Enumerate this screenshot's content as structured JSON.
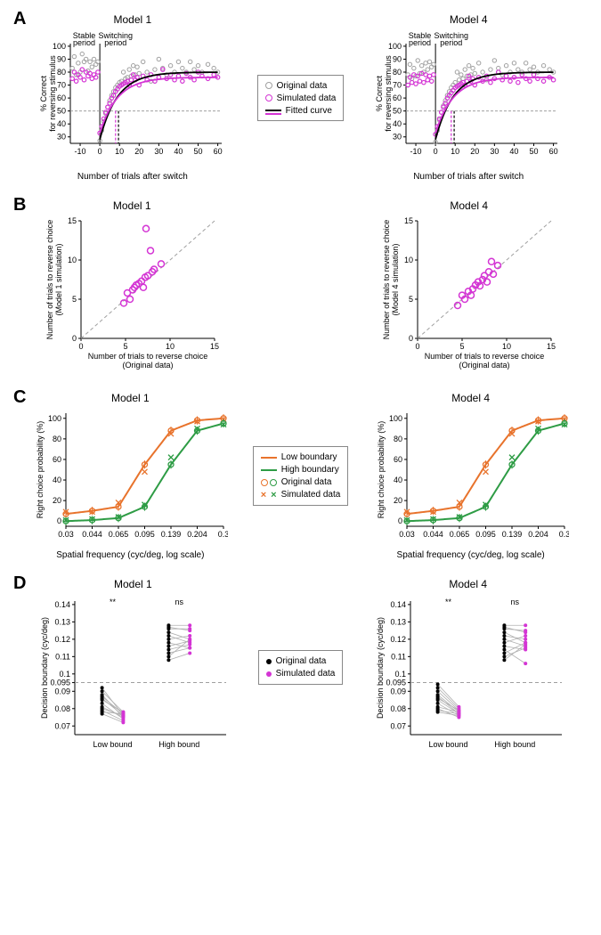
{
  "colors": {
    "magenta": "#d434d4",
    "black": "#000000",
    "gray": "#a0a0a0",
    "dash": "#a0a0a0",
    "orange": "#e8732c",
    "green": "#2e9c45"
  },
  "labels": {
    "model1": "Model 1",
    "model4": "Model 4"
  },
  "panelA": {
    "title1": "Model 1",
    "title4": "Model 4",
    "ylabel": "% Correct\nfor reversing stimulus",
    "xlabel": "Number of trials after switch",
    "stable": "Stable\nperiod",
    "switching": "Switching\nperiod",
    "legend": {
      "orig": "Original data",
      "sim": "Simulated data",
      "fit": "Fitted curve"
    },
    "xticks": [
      -10,
      0,
      10,
      20,
      30,
      40,
      50,
      60
    ],
    "yticks": [
      30,
      40,
      50,
      60,
      70,
      80,
      90,
      100
    ],
    "xlim": [
      -15,
      62
    ],
    "ylim": [
      25,
      102
    ],
    "hline": 50,
    "trans": 8,
    "m1": {
      "orig": [
        [
          -14,
          83
        ],
        [
          -13,
          92
        ],
        [
          -12,
          78
        ],
        [
          -11,
          87
        ],
        [
          -10,
          80
        ],
        [
          -9,
          94
        ],
        [
          -8,
          88
        ],
        [
          -7,
          90
        ],
        [
          -6,
          81
        ],
        [
          -5,
          88
        ],
        [
          -4,
          84
        ],
        [
          -3,
          90
        ],
        [
          -2,
          86
        ],
        [
          -1,
          88
        ],
        [
          0,
          27
        ],
        [
          1,
          35
        ],
        [
          2,
          42
        ],
        [
          3,
          48
        ],
        [
          4,
          53
        ],
        [
          5,
          58
        ],
        [
          6,
          62
        ],
        [
          7,
          65
        ],
        [
          8,
          68
        ],
        [
          9,
          70
        ],
        [
          10,
          72
        ],
        [
          11,
          73
        ],
        [
          12,
          80
        ],
        [
          13,
          75
        ],
        [
          14,
          76
        ],
        [
          15,
          82
        ],
        [
          16,
          77
        ],
        [
          17,
          85
        ],
        [
          18,
          78
        ],
        [
          19,
          84
        ],
        [
          20,
          79
        ],
        [
          22,
          88
        ],
        [
          24,
          80
        ],
        [
          26,
          73
        ],
        [
          28,
          82
        ],
        [
          30,
          90
        ],
        [
          32,
          83
        ],
        [
          34,
          78
        ],
        [
          36,
          85
        ],
        [
          38,
          80
        ],
        [
          40,
          88
        ],
        [
          42,
          83
        ],
        [
          44,
          80
        ],
        [
          46,
          88
        ],
        [
          48,
          82
        ],
        [
          50,
          85
        ],
        [
          52,
          80
        ],
        [
          55,
          86
        ],
        [
          58,
          83
        ],
        [
          60,
          80
        ]
      ],
      "sim": [
        [
          -14,
          75
        ],
        [
          -13,
          80
        ],
        [
          -12,
          73
        ],
        [
          -11,
          78
        ],
        [
          -10,
          76
        ],
        [
          -9,
          82
        ],
        [
          -8,
          74
        ],
        [
          -7,
          80
        ],
        [
          -6,
          77
        ],
        [
          -5,
          79
        ],
        [
          -4,
          75
        ],
        [
          -3,
          78
        ],
        [
          -2,
          76
        ],
        [
          -1,
          80
        ],
        [
          0,
          33
        ],
        [
          1,
          38
        ],
        [
          2,
          44
        ],
        [
          3,
          49
        ],
        [
          4,
          53
        ],
        [
          5,
          56
        ],
        [
          6,
          60
        ],
        [
          7,
          62
        ],
        [
          8,
          65
        ],
        [
          9,
          67
        ],
        [
          10,
          69
        ],
        [
          11,
          70
        ],
        [
          12,
          71
        ],
        [
          13,
          72
        ],
        [
          14,
          73
        ],
        [
          15,
          70
        ],
        [
          16,
          74
        ],
        [
          17,
          78
        ],
        [
          18,
          74
        ],
        [
          19,
          76
        ],
        [
          20,
          70
        ],
        [
          22,
          77
        ],
        [
          24,
          74
        ],
        [
          26,
          78
        ],
        [
          28,
          73
        ],
        [
          30,
          76
        ],
        [
          32,
          82
        ],
        [
          34,
          75
        ],
        [
          36,
          78
        ],
        [
          38,
          74
        ],
        [
          40,
          77
        ],
        [
          42,
          73
        ],
        [
          44,
          79
        ],
        [
          46,
          76
        ],
        [
          48,
          74
        ],
        [
          50,
          80
        ],
        [
          52,
          77
        ],
        [
          55,
          75
        ],
        [
          58,
          78
        ],
        [
          60,
          76
        ]
      ]
    },
    "m4": {
      "orig": [
        [
          -14,
          78
        ],
        [
          -13,
          86
        ],
        [
          -12,
          75
        ],
        [
          -11,
          83
        ],
        [
          -10,
          77
        ],
        [
          -9,
          89
        ],
        [
          -8,
          79
        ],
        [
          -7,
          85
        ],
        [
          -6,
          80
        ],
        [
          -5,
          87
        ],
        [
          -4,
          82
        ],
        [
          -3,
          88
        ],
        [
          -2,
          84
        ],
        [
          -1,
          86
        ],
        [
          0,
          26
        ],
        [
          1,
          35
        ],
        [
          2,
          43
        ],
        [
          3,
          49
        ],
        [
          4,
          54
        ],
        [
          5,
          58
        ],
        [
          6,
          62
        ],
        [
          7,
          65
        ],
        [
          8,
          68
        ],
        [
          9,
          70
        ],
        [
          10,
          72
        ],
        [
          11,
          80
        ],
        [
          12,
          74
        ],
        [
          13,
          78
        ],
        [
          14,
          75
        ],
        [
          15,
          82
        ],
        [
          16,
          77
        ],
        [
          17,
          85
        ],
        [
          18,
          78
        ],
        [
          19,
          83
        ],
        [
          20,
          79
        ],
        [
          22,
          87
        ],
        [
          24,
          80
        ],
        [
          26,
          74
        ],
        [
          28,
          82
        ],
        [
          30,
          89
        ],
        [
          32,
          83
        ],
        [
          34,
          78
        ],
        [
          36,
          85
        ],
        [
          38,
          80
        ],
        [
          40,
          87
        ],
        [
          42,
          82
        ],
        [
          44,
          80
        ],
        [
          46,
          87
        ],
        [
          48,
          82
        ],
        [
          50,
          84
        ],
        [
          52,
          80
        ],
        [
          55,
          85
        ],
        [
          58,
          82
        ],
        [
          60,
          80
        ]
      ],
      "sim": [
        [
          -14,
          70
        ],
        [
          -13,
          76
        ],
        [
          -12,
          72
        ],
        [
          -11,
          78
        ],
        [
          -10,
          71
        ],
        [
          -9,
          77
        ],
        [
          -8,
          73
        ],
        [
          -7,
          79
        ],
        [
          -6,
          72
        ],
        [
          -5,
          78
        ],
        [
          -4,
          74
        ],
        [
          -3,
          77
        ],
        [
          -2,
          73
        ],
        [
          -1,
          78
        ],
        [
          0,
          32
        ],
        [
          1,
          38
        ],
        [
          2,
          44
        ],
        [
          3,
          49
        ],
        [
          4,
          53
        ],
        [
          5,
          56
        ],
        [
          6,
          60
        ],
        [
          7,
          62
        ],
        [
          8,
          64
        ],
        [
          9,
          66
        ],
        [
          10,
          68
        ],
        [
          11,
          69
        ],
        [
          12,
          70
        ],
        [
          13,
          71
        ],
        [
          14,
          72
        ],
        [
          15,
          70
        ],
        [
          16,
          73
        ],
        [
          17,
          77
        ],
        [
          18,
          73
        ],
        [
          19,
          75
        ],
        [
          20,
          70
        ],
        [
          22,
          76
        ],
        [
          24,
          73
        ],
        [
          26,
          77
        ],
        [
          28,
          72
        ],
        [
          30,
          75
        ],
        [
          32,
          80
        ],
        [
          34,
          74
        ],
        [
          36,
          77
        ],
        [
          38,
          73
        ],
        [
          40,
          76
        ],
        [
          42,
          72
        ],
        [
          44,
          78
        ],
        [
          46,
          75
        ],
        [
          48,
          73
        ],
        [
          50,
          78
        ],
        [
          52,
          75
        ],
        [
          55,
          73
        ],
        [
          58,
          76
        ],
        [
          60,
          74
        ]
      ]
    }
  },
  "panelB": {
    "ylab1": "Number of trials to reverse choice\n(Model 1 simulation)",
    "ylab4": "Number of trials to reverse choice\n(Model 4 simulation)",
    "xlab": "Number of trials to reverse choice\n(Original data)",
    "ticks": [
      0,
      5,
      10,
      15
    ],
    "lim": [
      0,
      15
    ],
    "m1": [
      [
        4.8,
        4.5
      ],
      [
        5.2,
        5.8
      ],
      [
        5.5,
        5.0
      ],
      [
        5.8,
        6.2
      ],
      [
        6.0,
        6.5
      ],
      [
        6.2,
        6.8
      ],
      [
        6.5,
        7.0
      ],
      [
        6.8,
        7.3
      ],
      [
        7.0,
        6.5
      ],
      [
        7.2,
        7.8
      ],
      [
        7.3,
        14.0
      ],
      [
        7.5,
        8.0
      ],
      [
        7.8,
        11.2
      ],
      [
        8.0,
        8.5
      ],
      [
        8.2,
        8.8
      ],
      [
        9.0,
        9.5
      ]
    ],
    "m4": [
      [
        4.5,
        4.2
      ],
      [
        5.0,
        5.5
      ],
      [
        5.3,
        5.0
      ],
      [
        5.7,
        6.0
      ],
      [
        6.0,
        5.5
      ],
      [
        6.2,
        6.3
      ],
      [
        6.5,
        6.8
      ],
      [
        6.8,
        7.2
      ],
      [
        7.0,
        6.7
      ],
      [
        7.3,
        7.5
      ],
      [
        7.5,
        8.0
      ],
      [
        7.8,
        7.2
      ],
      [
        8.0,
        8.5
      ],
      [
        8.3,
        9.8
      ],
      [
        8.5,
        8.2
      ],
      [
        9.0,
        9.3
      ]
    ]
  },
  "panelC": {
    "ylabel": "Right choice probability (%)",
    "xlabel": "Spatial frequency (cyc/deg, log scale)",
    "xticks": [
      "0.03",
      "0.044",
      "0.065",
      "0.095",
      "0.139",
      "0.204",
      "0.3"
    ],
    "yticks": [
      0,
      20,
      40,
      60,
      80,
      100
    ],
    "ylim": [
      -5,
      105
    ],
    "legend": {
      "low": "Low boundary",
      "high": "High boundary",
      "orig": "Original data",
      "sim": "Simulated data"
    },
    "low_orig": [
      7,
      10,
      14,
      55,
      88,
      98,
      100
    ],
    "low_sim": [
      9,
      9,
      18,
      48,
      85,
      97,
      99
    ],
    "high_orig": [
      0,
      1,
      3,
      14,
      55,
      88,
      95
    ],
    "high_sim": [
      1,
      2,
      4,
      16,
      62,
      90,
      94
    ]
  },
  "panelD": {
    "ylabel": "Decision boundary (cyc/deg)",
    "xlabels": [
      "Low bound",
      "High bound"
    ],
    "yticks": [
      0.07,
      0.08,
      0.09,
      0.095,
      0.1,
      0.11,
      0.12,
      0.13,
      0.14
    ],
    "ylim": [
      0.065,
      0.142
    ],
    "hline": 0.095,
    "sig1": "**",
    "sig2": "ns",
    "legend": {
      "orig": "Original data",
      "sim": "Simulated data"
    },
    "m1": {
      "low": [
        [
          0.092,
          0.076
        ],
        [
          0.09,
          0.078
        ],
        [
          0.088,
          0.075
        ],
        [
          0.087,
          0.077
        ],
        [
          0.086,
          0.076
        ],
        [
          0.085,
          0.078
        ],
        [
          0.083,
          0.074
        ],
        [
          0.081,
          0.075
        ],
        [
          0.08,
          0.076
        ],
        [
          0.079,
          0.073
        ],
        [
          0.078,
          0.077
        ],
        [
          0.077,
          0.072
        ]
      ],
      "high": [
        [
          0.128,
          0.128
        ],
        [
          0.126,
          0.126
        ],
        [
          0.124,
          0.12
        ],
        [
          0.122,
          0.118
        ],
        [
          0.12,
          0.122
        ],
        [
          0.118,
          0.115
        ],
        [
          0.116,
          0.119
        ],
        [
          0.114,
          0.117
        ],
        [
          0.112,
          0.115
        ],
        [
          0.11,
          0.12
        ],
        [
          0.108,
          0.112
        ],
        [
          0.127,
          0.125
        ]
      ]
    },
    "m4": {
      "low": [
        [
          0.092,
          0.08
        ],
        [
          0.09,
          0.079
        ],
        [
          0.088,
          0.078
        ],
        [
          0.087,
          0.077
        ],
        [
          0.086,
          0.079
        ],
        [
          0.085,
          0.077
        ],
        [
          0.083,
          0.076
        ],
        [
          0.081,
          0.078
        ],
        [
          0.08,
          0.075
        ],
        [
          0.079,
          0.077
        ],
        [
          0.078,
          0.076
        ],
        [
          0.094,
          0.081
        ]
      ],
      "high": [
        [
          0.128,
          0.128
        ],
        [
          0.126,
          0.125
        ],
        [
          0.124,
          0.118
        ],
        [
          0.122,
          0.12
        ],
        [
          0.12,
          0.116
        ],
        [
          0.118,
          0.122
        ],
        [
          0.116,
          0.114
        ],
        [
          0.114,
          0.106
        ],
        [
          0.112,
          0.118
        ],
        [
          0.11,
          0.115
        ],
        [
          0.108,
          0.117
        ],
        [
          0.127,
          0.124
        ]
      ]
    }
  }
}
